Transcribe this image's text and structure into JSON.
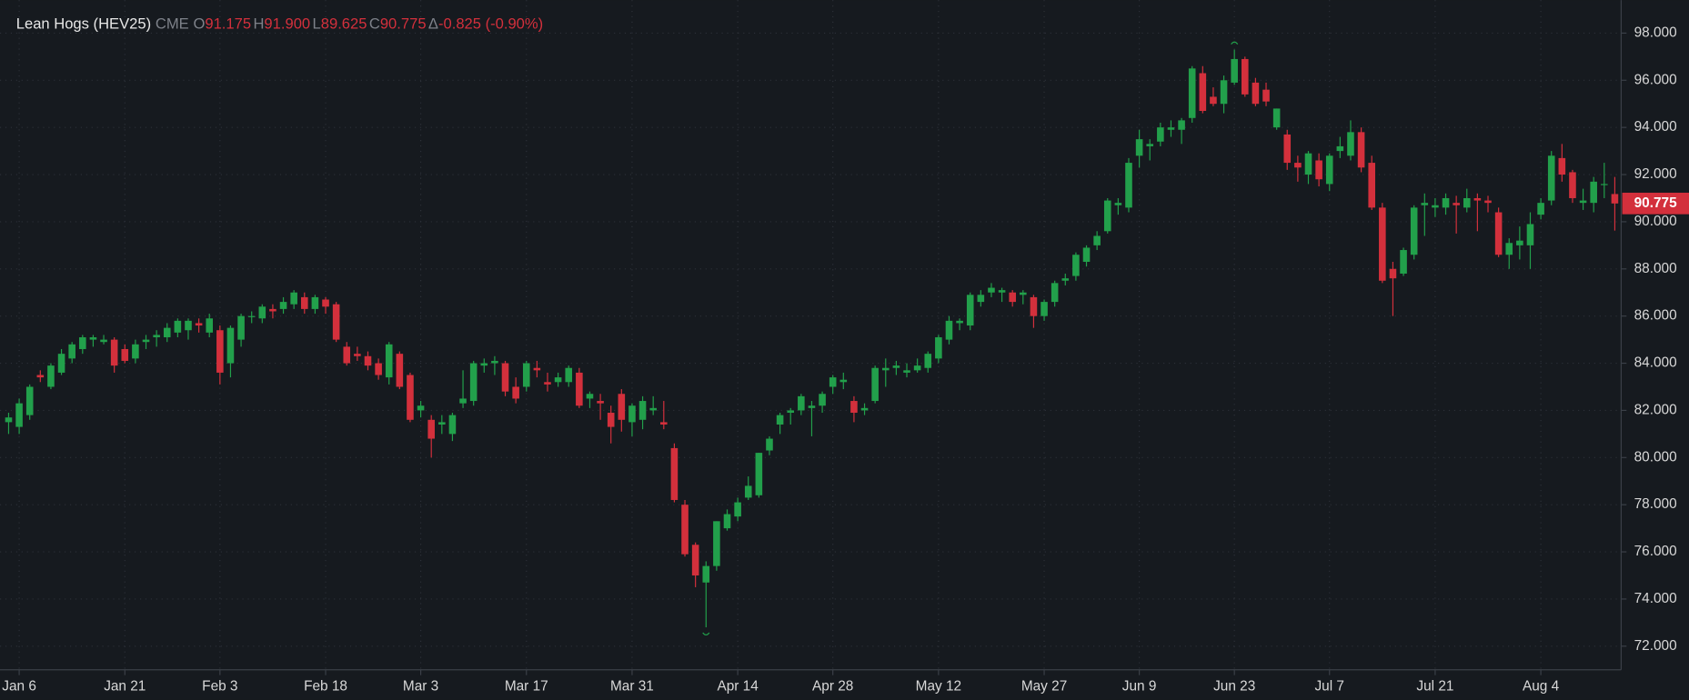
{
  "chart_data": {
    "type": "candlestick",
    "header": {
      "title": "Lean Hogs (HEV25)",
      "exchange": "CME",
      "open_label": "O",
      "open": "91.175",
      "high_label": "H",
      "high": "91.900",
      "low_label": "L",
      "low": "89.625",
      "close_label": "C",
      "close": "90.775",
      "change_label": "Δ",
      "change": "-0.825 (-0.90%)"
    },
    "categories": [
      null,
      "Jan 6",
      null,
      null,
      null,
      null,
      null,
      null,
      null,
      null,
      null,
      "Jan 21",
      null,
      null,
      null,
      null,
      null,
      null,
      null,
      null,
      "Feb 3",
      null,
      null,
      null,
      null,
      null,
      null,
      null,
      null,
      null,
      "Feb 18",
      null,
      null,
      null,
      null,
      null,
      null,
      null,
      null,
      "Mar 3",
      null,
      null,
      null,
      null,
      null,
      null,
      null,
      null,
      null,
      "Mar 17",
      null,
      null,
      null,
      null,
      null,
      null,
      null,
      null,
      null,
      "Mar 31",
      null,
      null,
      null,
      null,
      null,
      null,
      null,
      null,
      null,
      "Apr 14",
      null,
      null,
      null,
      null,
      null,
      null,
      null,
      null,
      "Apr 28",
      null,
      null,
      null,
      null,
      null,
      null,
      null,
      null,
      null,
      "May 12",
      null,
      null,
      null,
      null,
      null,
      null,
      null,
      null,
      null,
      "May 27",
      null,
      null,
      null,
      null,
      null,
      null,
      null,
      null,
      "Jun 9",
      null,
      null,
      null,
      null,
      null,
      null,
      null,
      null,
      "Jun 23",
      null,
      null,
      null,
      null,
      null,
      null,
      null,
      null,
      "Jul 7",
      null,
      null,
      null,
      null,
      null,
      null,
      null,
      null,
      null,
      "Jul 21",
      null,
      null,
      null,
      null,
      null,
      null,
      null,
      null,
      null,
      "Aug 4",
      null,
      null,
      null,
      null,
      null,
      null,
      null
    ],
    "open": [
      81.5,
      81.3,
      81.8,
      83.5,
      83.0,
      83.6,
      84.2,
      84.6,
      85.0,
      84.9,
      85.0,
      84.6,
      84.2,
      84.9,
      85.1,
      85.1,
      85.3,
      85.4,
      85.7,
      85.3,
      85.4,
      84.0,
      85.0,
      86.0,
      85.9,
      86.3,
      86.3,
      86.5,
      86.8,
      86.3,
      86.7,
      86.5,
      84.7,
      84.4,
      84.3,
      84.0,
      83.4,
      84.4,
      83.5,
      82.0,
      81.6,
      81.4,
      81.0,
      82.3,
      82.4,
      83.9,
      84.0,
      84.0,
      83.0,
      83.0,
      83.8,
      83.2,
      83.2,
      83.2,
      83.6,
      82.5,
      82.4,
      81.9,
      82.7,
      81.5,
      81.6,
      82.0,
      81.5,
      80.4,
      78.0,
      76.3,
      74.7,
      75.4,
      77.0,
      77.5,
      78.3,
      78.4,
      80.3,
      81.4,
      81.9,
      82.0,
      82.1,
      82.2,
      83.0,
      83.2,
      82.4,
      82.0,
      82.4,
      83.7,
      83.8,
      83.6,
      83.7,
      83.8,
      84.2,
      85.0,
      85.7,
      85.6,
      86.6,
      87.0,
      87.0,
      87.0,
      86.9,
      86.8,
      86.0,
      86.6,
      87.5,
      87.7,
      88.3,
      89.0,
      89.6,
      90.7,
      90.6,
      92.8,
      93.2,
      93.4,
      93.9,
      93.9,
      94.4,
      96.3,
      95.3,
      95.0,
      95.9,
      96.9,
      95.9,
      95.6,
      94.0,
      93.7,
      92.5,
      92.0,
      92.6,
      91.6,
      93.0,
      92.8,
      93.8,
      92.5,
      90.6,
      88.0,
      87.8,
      88.6,
      90.7,
      90.6,
      90.6,
      90.8,
      90.6,
      91.0,
      90.9,
      90.4,
      88.6,
      89.0,
      89.0,
      90.3,
      90.9,
      92.7,
      92.1,
      90.8,
      90.8,
      91.6,
      91.175
    ],
    "high": [
      81.9,
      82.5,
      83.1,
      83.7,
      84.0,
      84.6,
      84.9,
      85.2,
      85.2,
      85.2,
      85.1,
      84.8,
      85.0,
      85.2,
      85.4,
      85.7,
      85.9,
      85.9,
      85.9,
      86.1,
      85.6,
      85.6,
      86.1,
      86.2,
      86.5,
      86.5,
      86.8,
      87.1,
      87.0,
      86.9,
      86.8,
      86.6,
      84.9,
      84.7,
      84.5,
      84.2,
      84.9,
      84.5,
      83.6,
      82.4,
      81.8,
      81.8,
      81.9,
      83.7,
      84.1,
      84.2,
      84.3,
      84.1,
      83.4,
      84.1,
      84.1,
      83.6,
      83.6,
      83.9,
      83.8,
      82.8,
      82.7,
      82.2,
      82.9,
      82.3,
      82.6,
      82.6,
      82.4,
      80.6,
      78.2,
      76.4,
      75.6,
      77.3,
      77.8,
      78.3,
      79.2,
      80.2,
      80.9,
      81.9,
      82.1,
      82.7,
      82.4,
      82.8,
      83.5,
      83.6,
      82.6,
      82.3,
      83.9,
      84.2,
      84.1,
      84.0,
      84.2,
      84.5,
      85.2,
      86.0,
      85.9,
      87.0,
      87.1,
      87.4,
      87.2,
      87.1,
      87.1,
      86.9,
      86.7,
      87.5,
      87.8,
      88.7,
      89.0,
      89.6,
      91.0,
      91.0,
      92.7,
      93.9,
      93.5,
      94.2,
      94.3,
      94.4,
      96.6,
      96.6,
      95.7,
      96.2,
      97.3,
      97.0,
      96.1,
      95.9,
      94.8,
      93.9,
      92.8,
      93.0,
      92.9,
      92.9,
      93.6,
      94.3,
      94.0,
      92.8,
      90.8,
      88.3,
      88.9,
      90.7,
      91.2,
      91.0,
      91.2,
      91.1,
      91.4,
      91.2,
      91.1,
      90.6,
      89.3,
      89.8,
      90.4,
      91.0,
      93.0,
      93.3,
      92.2,
      91.4,
      91.9,
      92.5,
      91.9
    ],
    "low": [
      81.0,
      81.0,
      81.6,
      83.2,
      82.9,
      83.5,
      84.0,
      84.4,
      84.7,
      84.8,
      83.6,
      84.0,
      84.0,
      84.6,
      84.7,
      84.9,
      85.1,
      85.0,
      85.3,
      85.1,
      83.1,
      83.4,
      84.7,
      85.7,
      85.7,
      85.9,
      86.1,
      86.3,
      86.1,
      86.1,
      86.1,
      84.9,
      83.9,
      84.1,
      83.7,
      83.3,
      83.1,
      82.9,
      81.5,
      81.7,
      80.0,
      81.0,
      80.7,
      82.1,
      82.2,
      83.6,
      83.5,
      82.6,
      82.3,
      82.8,
      83.4,
      82.8,
      83.0,
      83.0,
      82.1,
      82.1,
      81.6,
      80.6,
      81.1,
      80.9,
      81.2,
      81.8,
      81.2,
      78.1,
      75.8,
      74.5,
      72.8,
      75.2,
      76.9,
      77.3,
      78.2,
      78.3,
      80.1,
      81.0,
      81.4,
      81.8,
      80.9,
      81.9,
      82.7,
      82.9,
      81.5,
      81.8,
      82.3,
      83.0,
      83.5,
      83.4,
      83.6,
      83.6,
      84.0,
      84.8,
      85.4,
      85.4,
      86.4,
      86.8,
      86.6,
      86.4,
      86.5,
      85.5,
      85.8,
      86.4,
      87.3,
      87.5,
      88.1,
      88.8,
      89.5,
      90.3,
      90.4,
      92.3,
      92.6,
      93.2,
      93.6,
      93.3,
      94.2,
      94.6,
      94.9,
      94.6,
      95.8,
      95.3,
      94.9,
      94.9,
      93.9,
      92.2,
      91.7,
      91.6,
      91.5,
      91.3,
      92.7,
      92.6,
      92.1,
      90.5,
      87.4,
      86.0,
      87.7,
      88.4,
      89.4,
      90.2,
      90.3,
      89.5,
      90.4,
      89.6,
      90.4,
      88.5,
      88.0,
      88.4,
      88.0,
      90.1,
      90.7,
      91.7,
      90.8,
      90.5,
      90.4,
      91.0,
      89.625
    ],
    "close": [
      81.7,
      82.3,
      83.0,
      83.4,
      83.9,
      84.4,
      84.8,
      85.1,
      85.1,
      85.0,
      83.9,
      84.1,
      84.8,
      85.0,
      85.2,
      85.5,
      85.8,
      85.8,
      85.6,
      85.9,
      83.6,
      85.5,
      86.0,
      86.0,
      86.4,
      86.2,
      86.6,
      87.0,
      86.3,
      86.8,
      86.4,
      85.0,
      84.0,
      84.3,
      83.9,
      83.5,
      84.8,
      83.0,
      81.6,
      82.2,
      80.8,
      81.5,
      81.8,
      82.5,
      84.0,
      84.0,
      84.1,
      82.8,
      82.5,
      84.0,
      83.7,
      83.1,
      83.4,
      83.8,
      82.2,
      82.7,
      82.3,
      81.3,
      81.6,
      82.2,
      82.4,
      82.1,
      81.4,
      78.2,
      75.9,
      75.0,
      75.4,
      77.3,
      77.6,
      78.1,
      78.8,
      80.2,
      80.8,
      81.8,
      82.0,
      82.6,
      82.2,
      82.7,
      83.4,
      83.3,
      81.9,
      82.1,
      83.8,
      83.8,
      83.9,
      83.7,
      83.9,
      84.4,
      85.1,
      85.8,
      85.8,
      86.9,
      86.9,
      87.2,
      87.1,
      86.6,
      87.0,
      86.0,
      86.6,
      87.4,
      87.6,
      88.6,
      88.9,
      89.4,
      90.9,
      90.8,
      92.5,
      93.5,
      93.3,
      94.0,
      94.0,
      94.3,
      96.5,
      94.7,
      95.0,
      96.0,
      96.9,
      95.4,
      95.0,
      95.1,
      94.8,
      92.5,
      92.3,
      92.9,
      91.8,
      92.8,
      93.2,
      93.8,
      92.3,
      90.6,
      87.5,
      87.6,
      88.8,
      90.6,
      90.8,
      90.7,
      91.0,
      90.7,
      91.0,
      90.9,
      90.8,
      88.6,
      89.1,
      89.2,
      89.9,
      90.8,
      92.8,
      92.0,
      91.0,
      90.9,
      91.7,
      91.6,
      90.775
    ],
    "up_color": "#22a04b",
    "down_color": "#d3303c",
    "last_price": {
      "value": 90.775,
      "label": "90.775"
    },
    "ylim": [
      71,
      99.4
    ],
    "yticks": [
      {
        "value": 72,
        "label": "72.000"
      },
      {
        "value": 74,
        "label": "74.000"
      },
      {
        "value": 76,
        "label": "76.000"
      },
      {
        "value": 78,
        "label": "78.000"
      },
      {
        "value": 80,
        "label": "80.000"
      },
      {
        "value": 82,
        "label": "82.000"
      },
      {
        "value": 84,
        "label": "84.000"
      },
      {
        "value": 86,
        "label": "86.000"
      },
      {
        "value": 88,
        "label": "88.000"
      },
      {
        "value": 90,
        "label": "90.000"
      },
      {
        "value": 92,
        "label": "92.000"
      },
      {
        "value": 94,
        "label": "94.000"
      },
      {
        "value": 96,
        "label": "96.000"
      },
      {
        "value": 98,
        "label": "98.000"
      }
    ],
    "grid": true
  }
}
